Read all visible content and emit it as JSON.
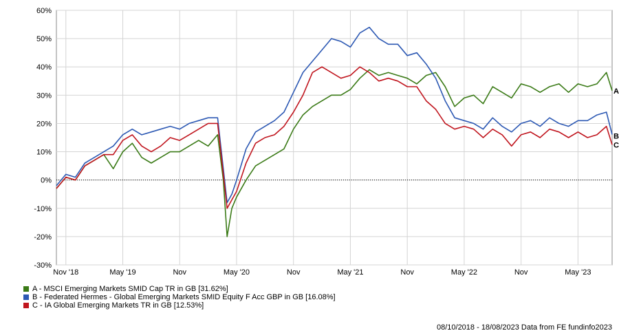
{
  "chart_data": {
    "type": "line",
    "ylim": [
      -30,
      60
    ],
    "y_ticks": [
      "60%",
      "50%",
      "40%",
      "30%",
      "20%",
      "10%",
      "0%",
      "-10%",
      "-20%",
      "-30%"
    ],
    "y_tick_values": [
      60,
      50,
      40,
      30,
      20,
      10,
      0,
      -10,
      -20,
      -30
    ],
    "x_ticks": [
      "Nov '18",
      "May '19",
      "Nov",
      "May '20",
      "Nov",
      "May '21",
      "Nov",
      "May '22",
      "Nov",
      "May '23"
    ],
    "x_tick_months": [
      1,
      7,
      13,
      19,
      25,
      31,
      37,
      43,
      49,
      55
    ],
    "x_range_months": [
      0,
      58.6
    ],
    "grid": true,
    "zero_line": true,
    "x": [
      0,
      1,
      2,
      3,
      4,
      5,
      6,
      7,
      8,
      9,
      10,
      11,
      12,
      13,
      14,
      15,
      16,
      17,
      17.6,
      18,
      18.5,
      19,
      20,
      21,
      22,
      23,
      24,
      25,
      26,
      27,
      28,
      29,
      30,
      31,
      32,
      33,
      34,
      35,
      36,
      37,
      38,
      39,
      40,
      41,
      42,
      43,
      44,
      45,
      46,
      47,
      48,
      49,
      50,
      51,
      52,
      53,
      54,
      55,
      56,
      57,
      58,
      58.6
    ],
    "series": [
      {
        "name": "A - MSCI Emerging Markets SMID Cap TR in GB [31.62%]",
        "label": "A",
        "color": "#3a7a16",
        "values": [
          -3,
          1,
          0,
          5,
          7,
          9,
          4,
          10,
          13,
          8,
          6,
          8,
          10,
          10,
          12,
          14,
          12,
          16,
          0,
          -20,
          -10,
          -6,
          0,
          5,
          7,
          9,
          11,
          18,
          23,
          26,
          28,
          30,
          30,
          32,
          36,
          39,
          37,
          38,
          37,
          36,
          34,
          37,
          38,
          33,
          26,
          29,
          30,
          27,
          33,
          31,
          29,
          34,
          33,
          31,
          33,
          34,
          31,
          34,
          33,
          34,
          38,
          31.6
        ]
      },
      {
        "name": "B - Federated Hermes - Global Emerging Markets SMID Equity F Acc GBP in GB [16.08%]",
        "label": "B",
        "color": "#2c58b3",
        "values": [
          -2,
          2,
          1,
          6,
          8,
          10,
          12,
          16,
          18,
          16,
          17,
          18,
          19,
          18,
          20,
          21,
          22,
          22,
          4,
          -8,
          -5,
          0,
          11,
          17,
          19,
          21,
          24,
          31,
          38,
          42,
          46,
          50,
          49,
          47,
          52,
          54,
          50,
          48,
          48,
          44,
          45,
          41,
          36,
          28,
          22,
          21,
          20,
          18,
          22,
          19,
          17,
          20,
          21,
          19,
          22,
          20,
          19,
          21,
          21,
          23,
          24,
          16.1
        ]
      },
      {
        "name": "C - IA Global Emerging Markets TR in GB [12.53%]",
        "label": "C",
        "color": "#c0151e",
        "values": [
          -3,
          1,
          0,
          5,
          7,
          9,
          9,
          14,
          16,
          12,
          10,
          12,
          15,
          14,
          16,
          18,
          20,
          20,
          2,
          -10,
          -7,
          -4,
          6,
          13,
          15,
          16,
          19,
          24,
          30,
          38,
          40,
          38,
          36,
          37,
          40,
          38,
          35,
          36,
          35,
          33,
          33,
          28,
          25,
          20,
          18,
          19,
          18,
          15,
          18,
          16,
          12,
          16,
          17,
          15,
          18,
          17,
          15,
          17,
          15,
          16,
          19,
          12.5
        ]
      }
    ]
  },
  "legend": [
    {
      "text": "A - MSCI Emerging Markets SMID Cap TR in GB [31.62%]",
      "color": "#3a7a16"
    },
    {
      "text": "B - Federated Hermes - Global Emerging Markets SMID Equity F Acc GBP in GB [16.08%]",
      "color": "#2c58b3"
    },
    {
      "text": "C - IA Global Emerging Markets TR in GB [12.53%]",
      "color": "#c0151e"
    }
  ],
  "footer": "08/10/2018 - 18/08/2023 Data from FE fundinfo2023"
}
